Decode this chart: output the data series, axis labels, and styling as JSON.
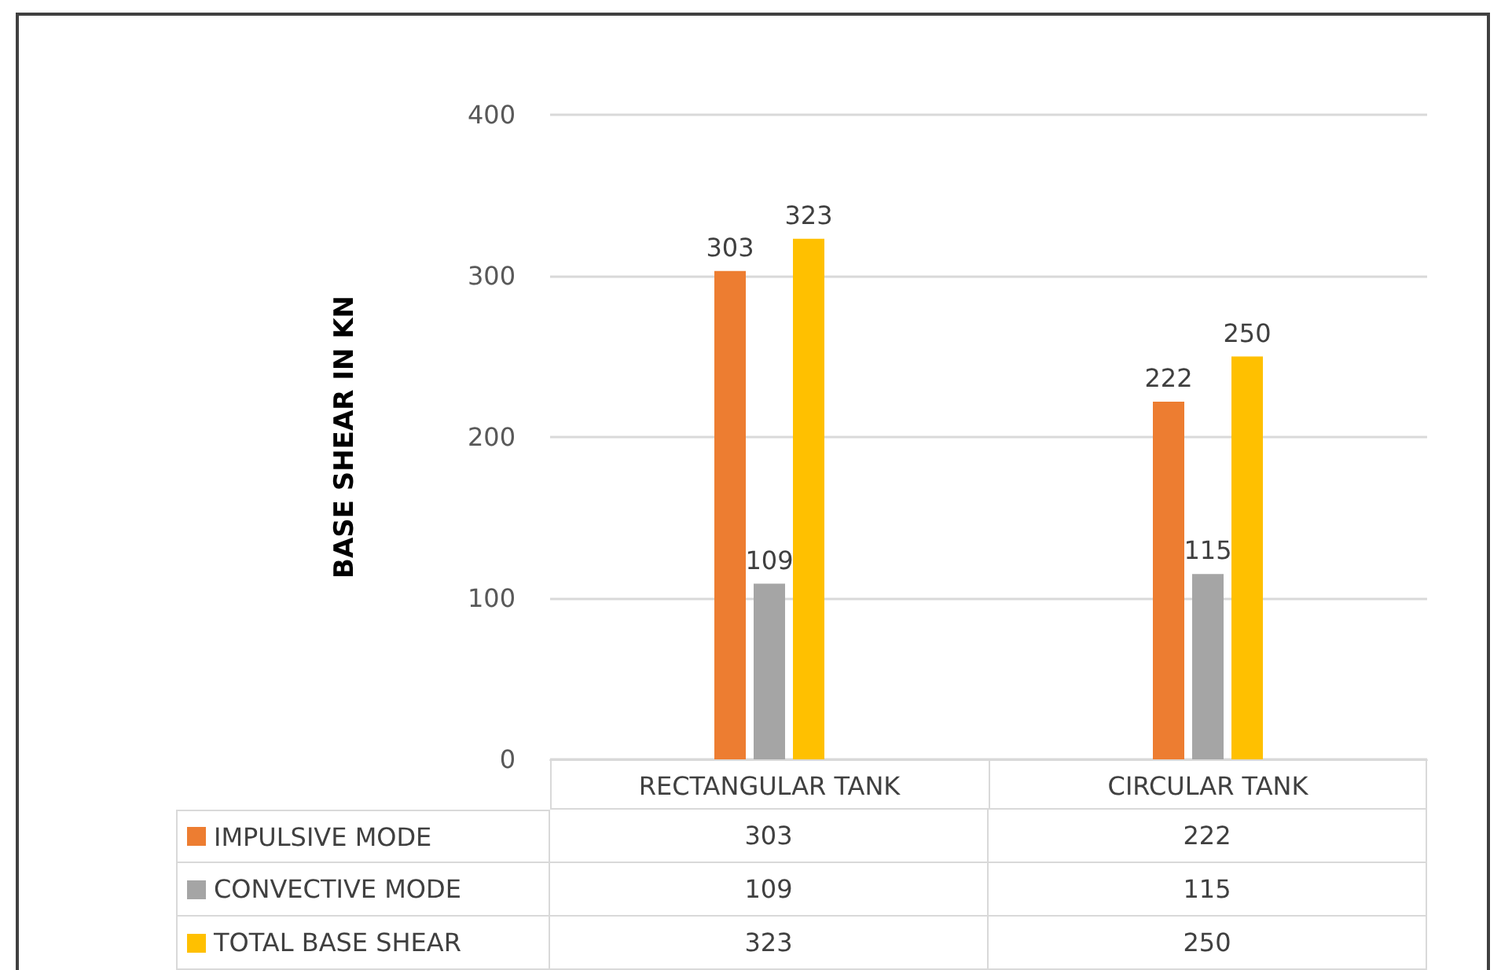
{
  "chart_data": {
    "type": "bar",
    "ylabel": "BASE SHEAR IN KN",
    "categories": [
      "RECTANGULAR TANK",
      "CIRCULAR TANK"
    ],
    "series": [
      {
        "name": "IMPULSIVE MODE",
        "color": "#ed7d31",
        "values": [
          303,
          222
        ]
      },
      {
        "name": "CONVECTIVE MODE",
        "color": "#a5a5a5",
        "values": [
          109,
          115
        ]
      },
      {
        "name": "TOTAL BASE SHEAR",
        "color": "#ffc000",
        "values": [
          323,
          250
        ]
      }
    ],
    "ylim": [
      0,
      400
    ],
    "yticks": [
      0,
      100,
      200,
      300,
      400
    ],
    "grid": "y",
    "legend": "bottom",
    "data_labels": true,
    "annotations": [
      "303",
      "222",
      "109",
      "115",
      "323",
      "250"
    ]
  }
}
